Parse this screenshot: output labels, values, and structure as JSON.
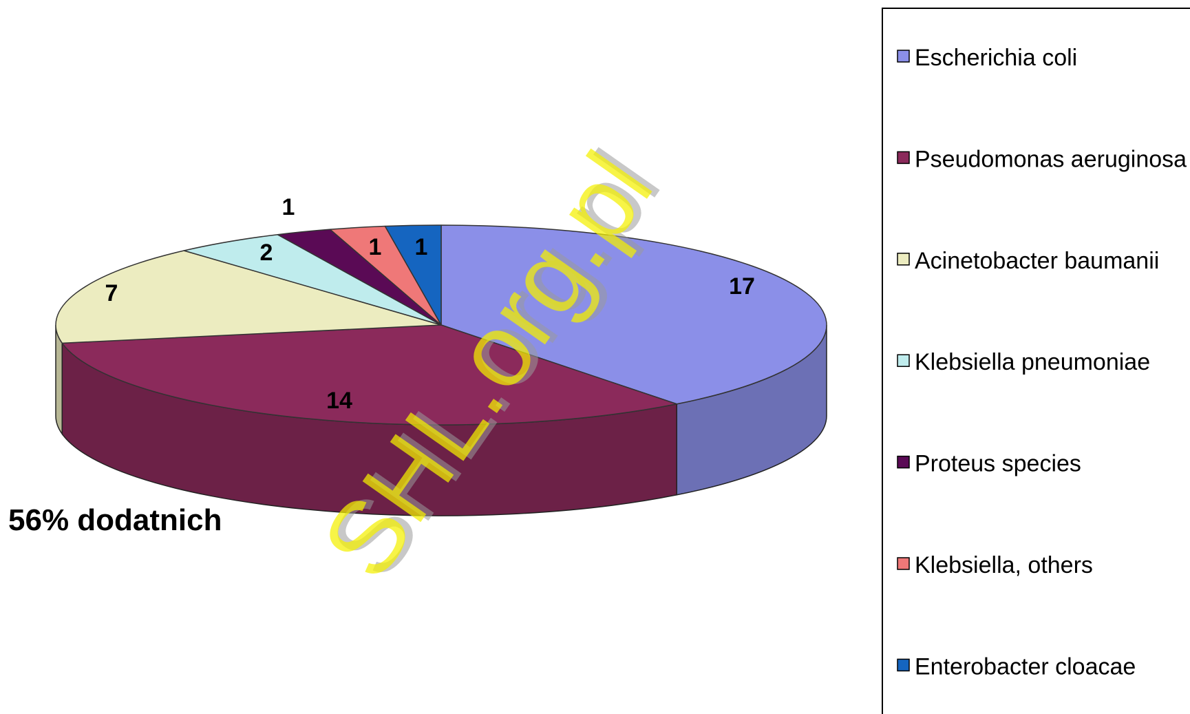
{
  "chart_data": {
    "type": "pie",
    "style": "3d",
    "series": [
      {
        "name": "Escherichia coli",
        "value": 17,
        "color": "#8b8fe8"
      },
      {
        "name": "Pseudomonas aeruginosa",
        "value": 14,
        "color": "#8b2a5b"
      },
      {
        "name": "Acinetobacter baumanii",
        "value": 7,
        "color": "#ececc0"
      },
      {
        "name": "Klebsiella pneumoniae",
        "value": 2,
        "color": "#bfeced"
      },
      {
        "name": "Proteus species",
        "value": 1,
        "color": "#5a0a55"
      },
      {
        "name": "Klebsiella, others",
        "value": 1,
        "color": "#ef7878"
      },
      {
        "name": "Enterobacter cloacae",
        "value": 1,
        "color": "#1565c0"
      }
    ],
    "data_labels": [
      "17",
      "14",
      "7",
      "2",
      "1",
      "1",
      "1"
    ],
    "annotation": "56% dodatnich",
    "legend_position": "right",
    "watermark": "SHL.org.pl"
  }
}
